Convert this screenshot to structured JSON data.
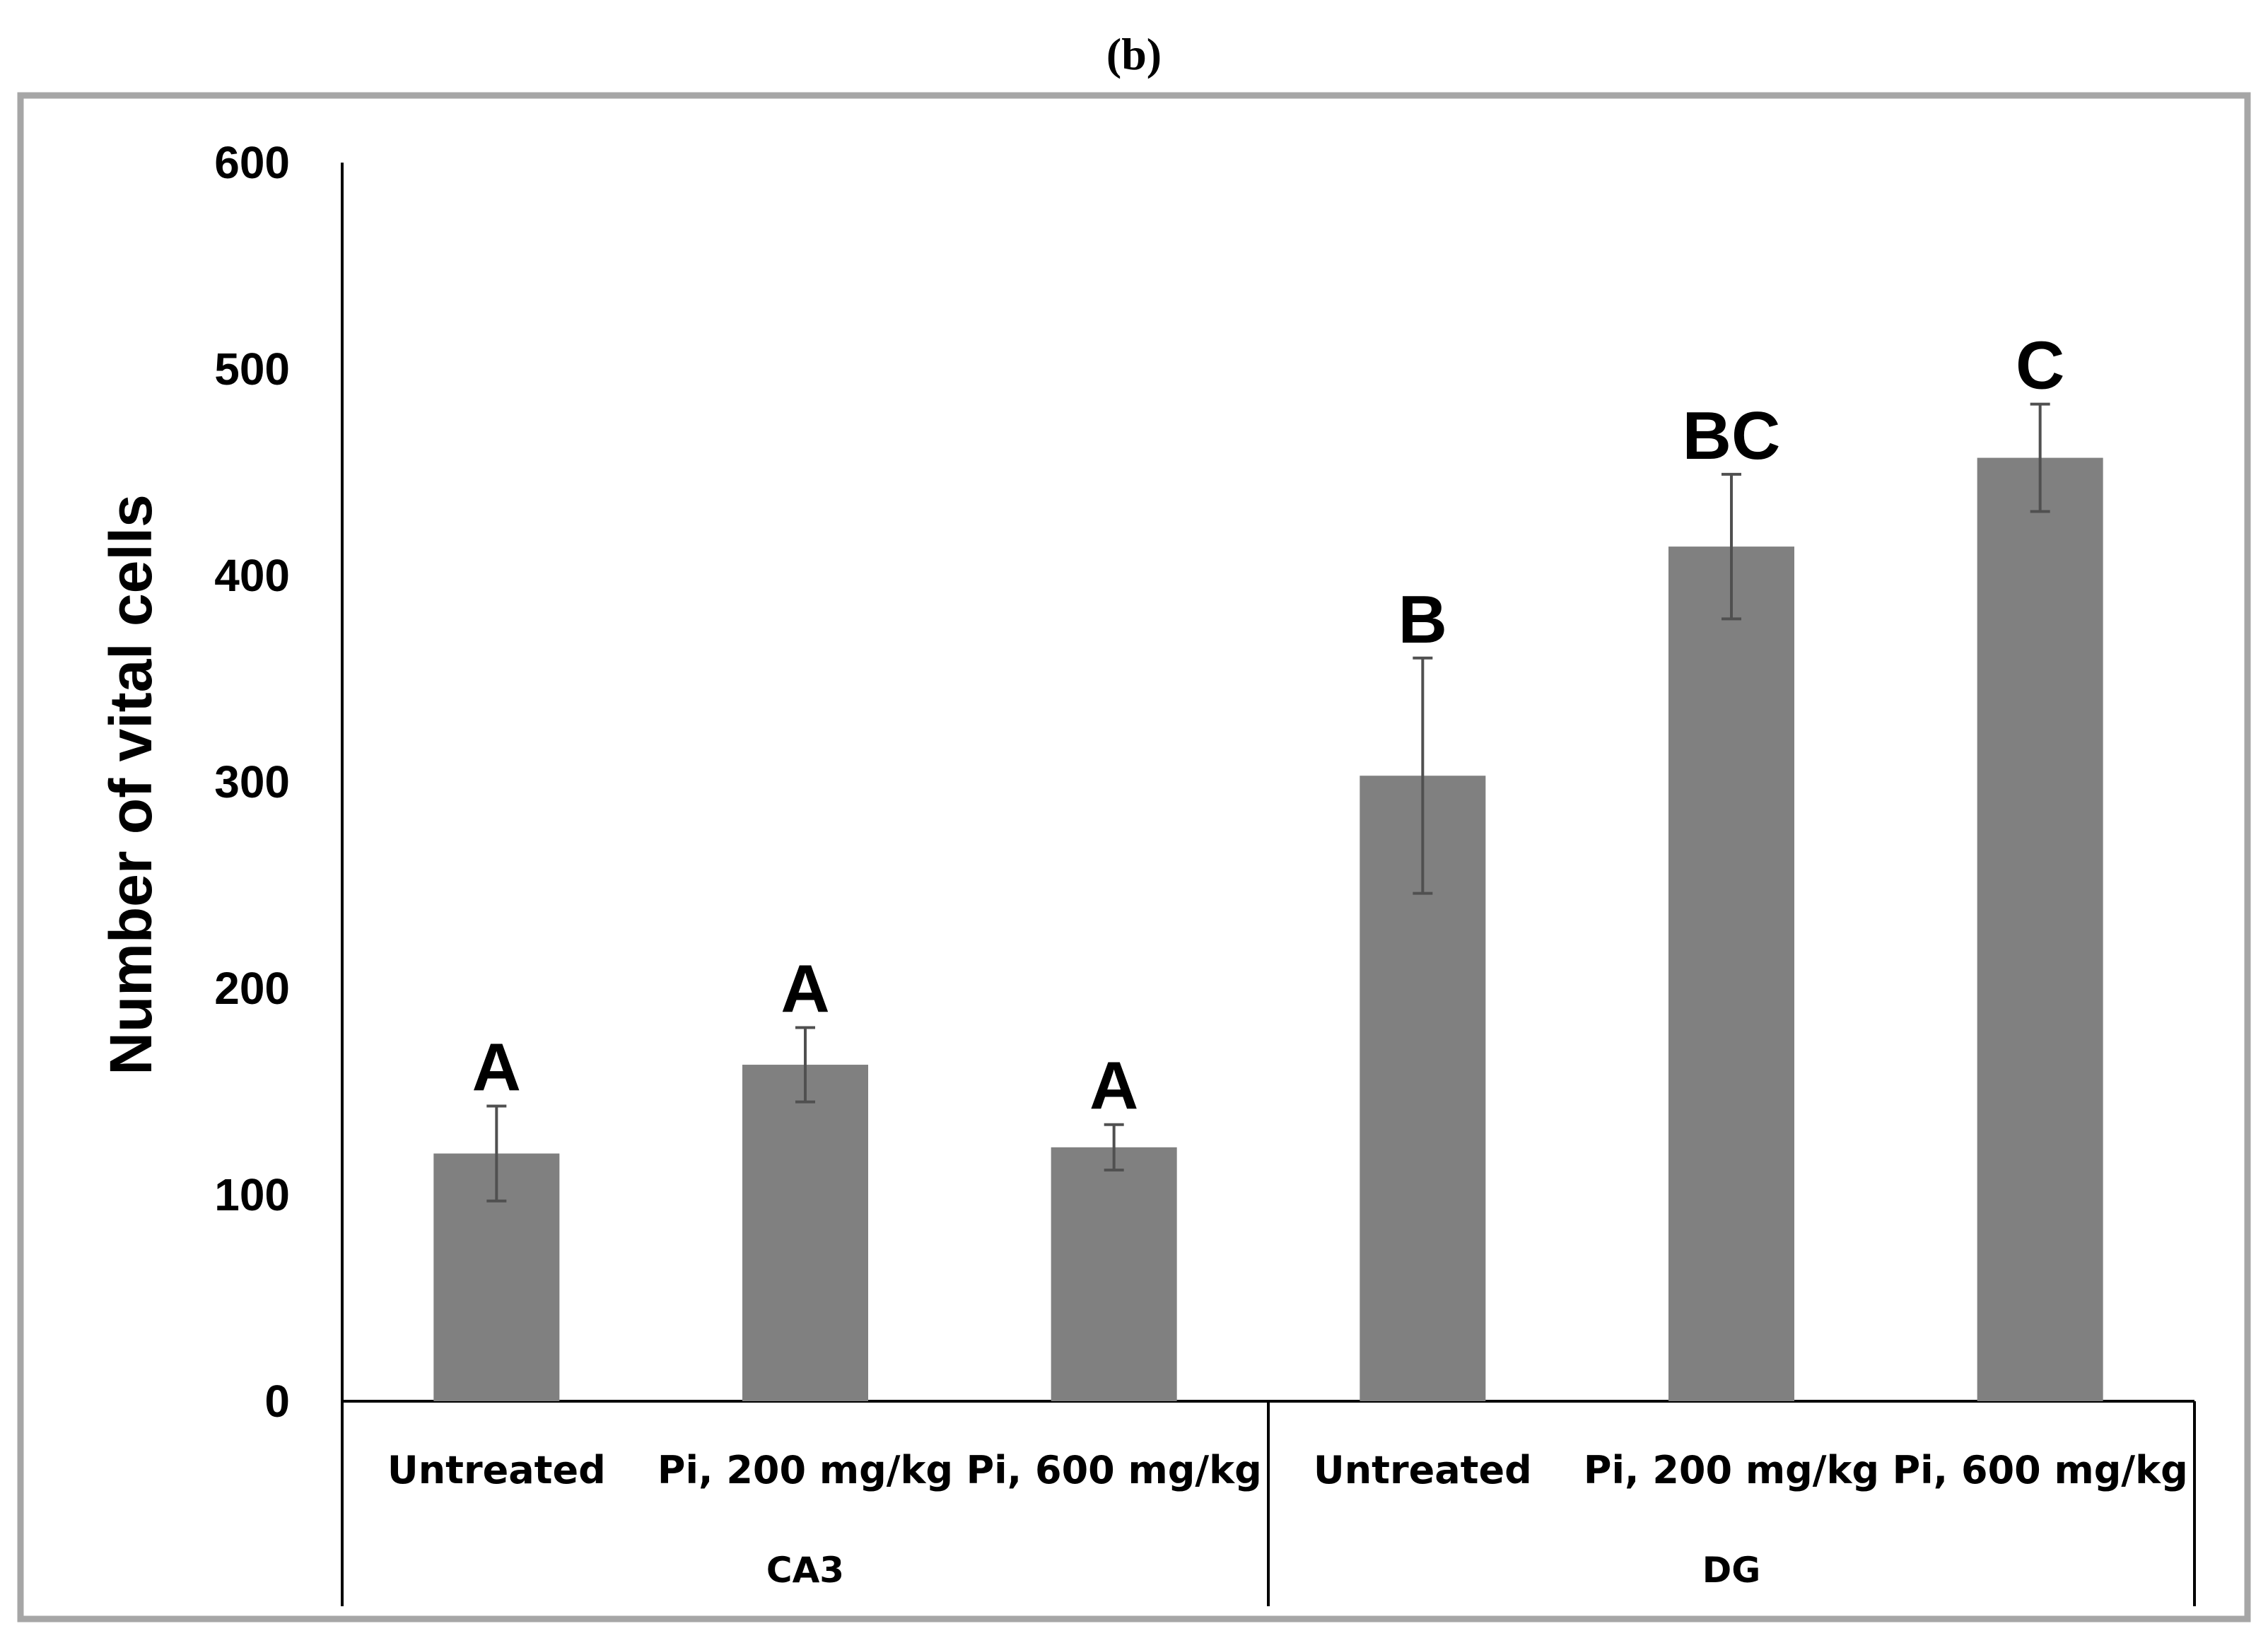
{
  "panel_label": "(b)",
  "chart_data": {
    "type": "bar",
    "title": "",
    "ylabel": "Number of vital cells",
    "xlabel": "",
    "ylim": [
      0,
      600
    ],
    "yticks": [
      "0",
      "100",
      "200",
      "300",
      "400",
      "500",
      "600"
    ],
    "groups": [
      {
        "name": "CA3",
        "categories": [
          "Untreated",
          "Pi, 200 mg/kg",
          "Pi, 600 mg/kg"
        ]
      },
      {
        "name": "DG",
        "categories": [
          "Untreated",
          "Pi, 200 mg/kg",
          "Pi, 600 mg/kg"
        ]
      }
    ],
    "categories": [
      "Untreated",
      "Pi, 200 mg/kg",
      "Pi, 600 mg/kg",
      "Untreated",
      "Pi, 200 mg/kg",
      "Pi, 600 mg/kg"
    ],
    "values": [
      120,
      163,
      123,
      303,
      414,
      457
    ],
    "errors": [
      23,
      18,
      11,
      57,
      35,
      26
    ],
    "significance": [
      "A",
      "A",
      "A",
      "B",
      "BC",
      "C"
    ],
    "bar_color": "#808080",
    "error_color": "#505050"
  }
}
